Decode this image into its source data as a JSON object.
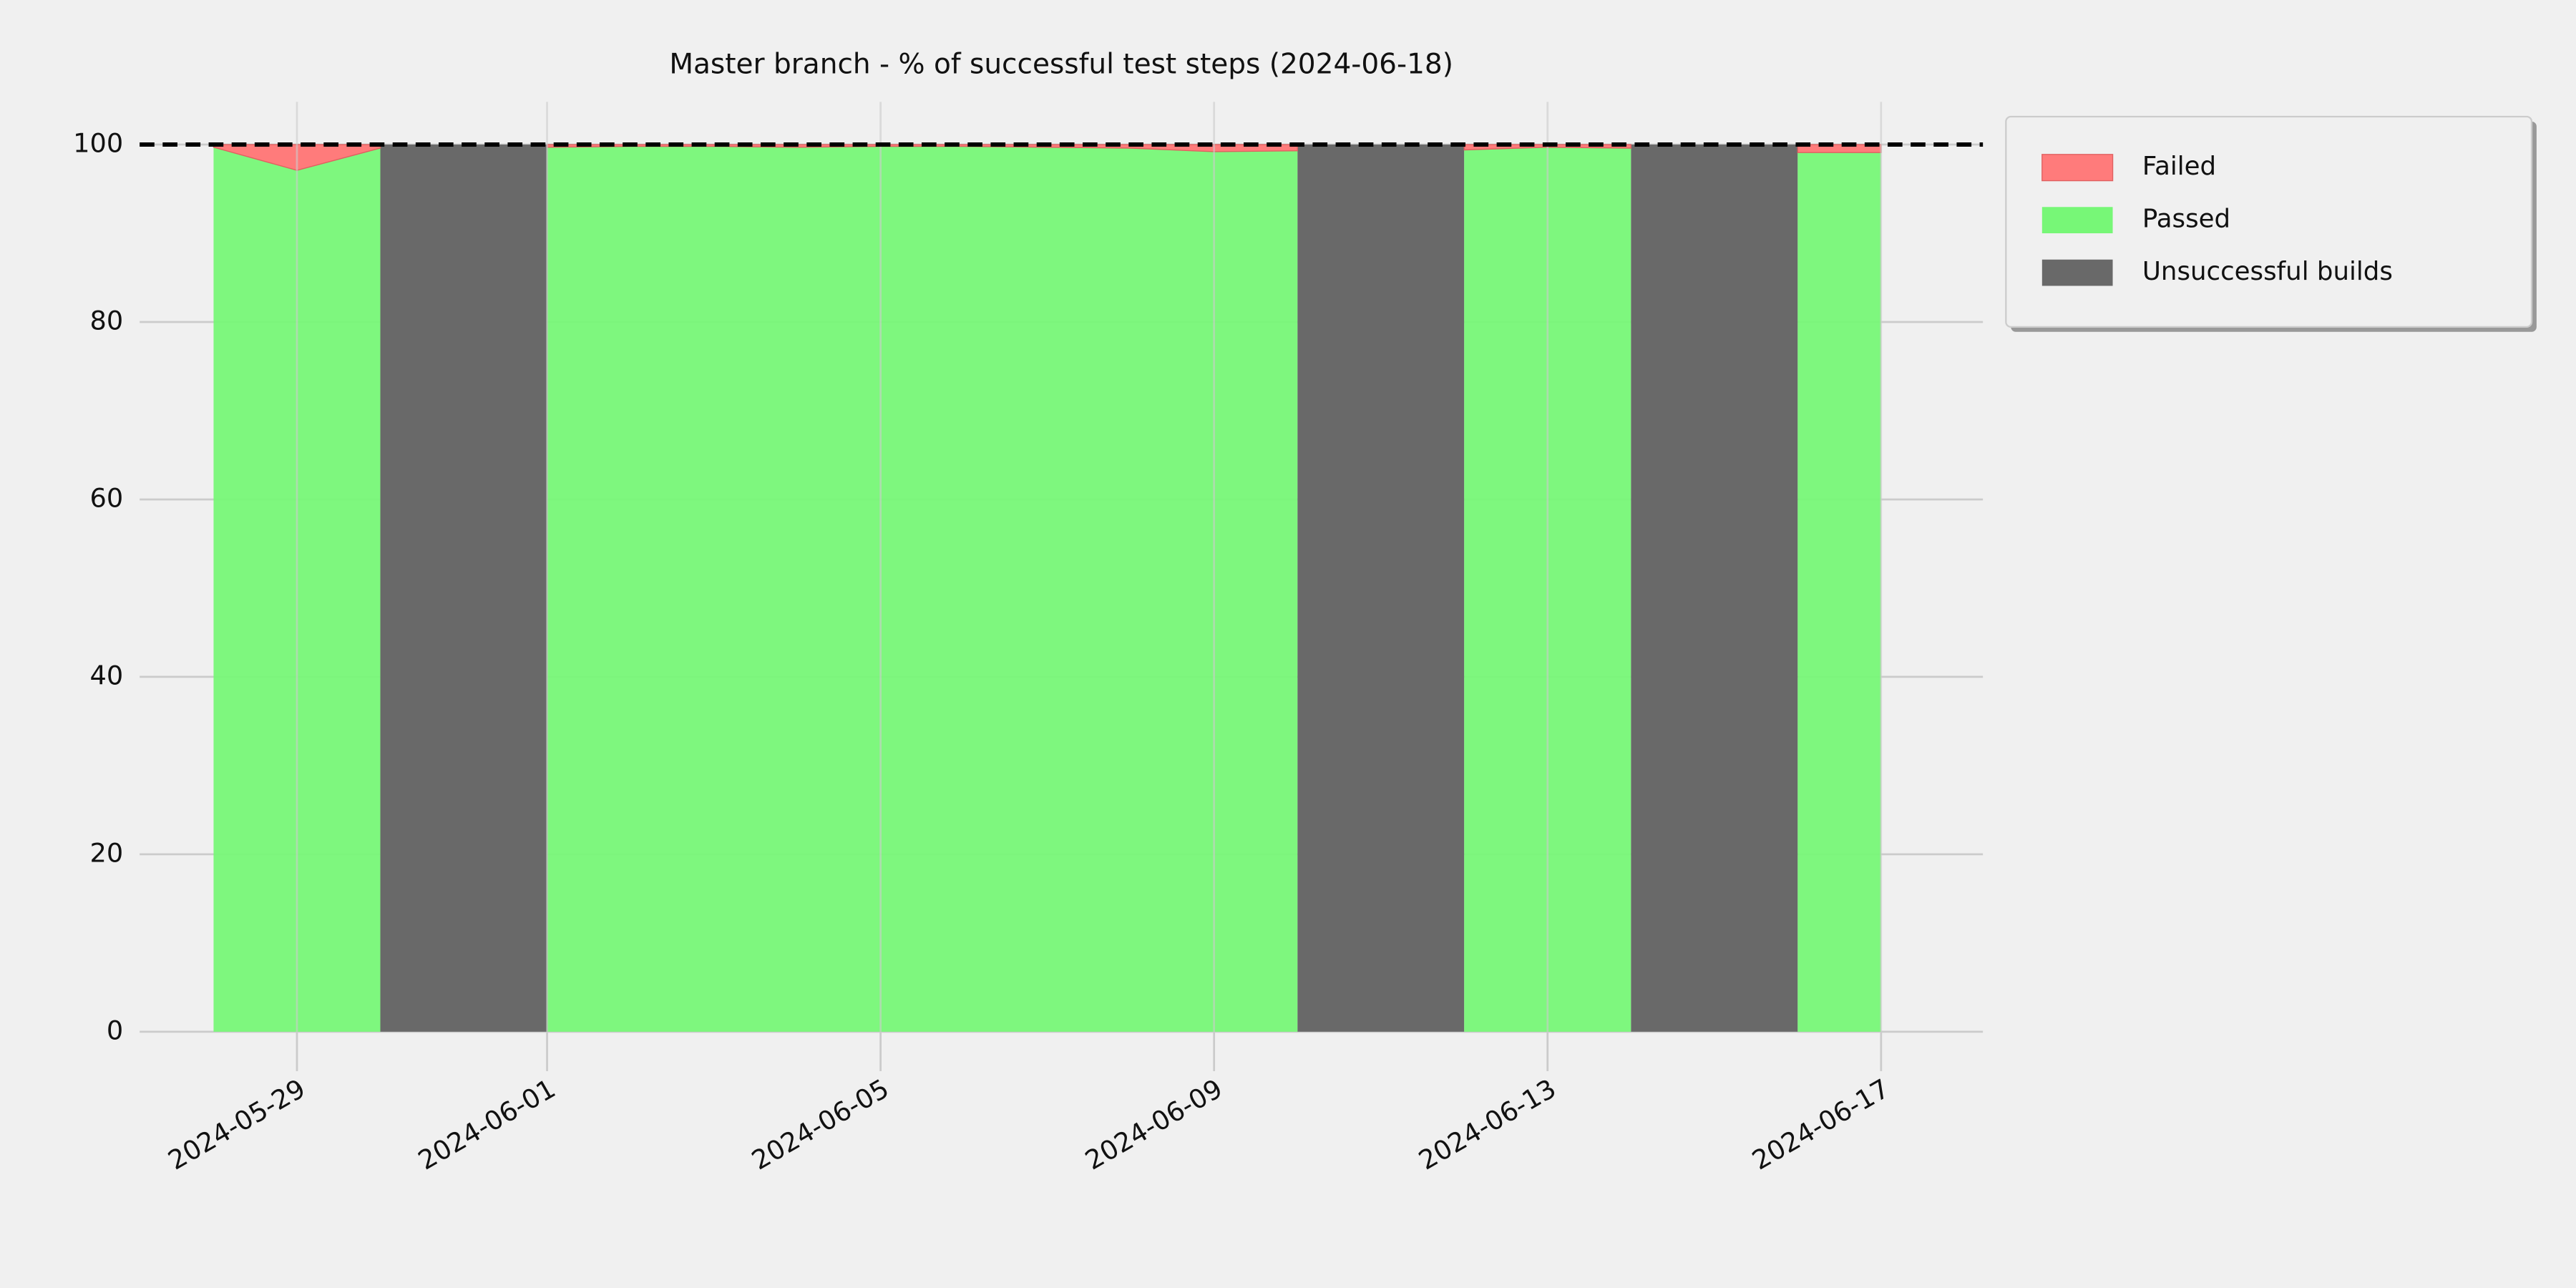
{
  "chart_data": {
    "type": "area",
    "title": "Master branch - % of successful test steps (2024-06-18)",
    "x": [
      "2024-05-28",
      "2024-05-29",
      "2024-05-30",
      "2024-05-31",
      "2024-06-01",
      "2024-06-02",
      "2024-06-03",
      "2024-06-04",
      "2024-06-05",
      "2024-06-06",
      "2024-06-07",
      "2024-06-08",
      "2024-06-09",
      "2024-06-10",
      "2024-06-11",
      "2024-06-12",
      "2024-06-13",
      "2024-06-14",
      "2024-06-15",
      "2024-06-16",
      "2024-06-17"
    ],
    "series": [
      {
        "name": "Failed",
        "color": "#ff7b7b",
        "values": [
          0.3,
          2.9,
          0.4,
          null,
          0.3,
          0.2,
          0.2,
          0.3,
          0.2,
          0.2,
          0.3,
          0.4,
          0.8,
          0.7,
          null,
          0.6,
          0.3,
          0.4,
          null,
          0.9,
          0.9
        ]
      },
      {
        "name": "Passed",
        "color": "#77f777",
        "values": [
          99.7,
          97.1,
          99.6,
          null,
          99.7,
          99.8,
          99.8,
          99.7,
          99.8,
          99.8,
          99.7,
          99.6,
          99.2,
          99.3,
          null,
          99.4,
          99.7,
          99.6,
          null,
          99.1,
          99.1
        ]
      },
      {
        "name": "Unsuccessful builds",
        "color": "#696969",
        "values": [
          null,
          null,
          null,
          100,
          null,
          null,
          null,
          null,
          null,
          null,
          null,
          null,
          null,
          null,
          100,
          null,
          null,
          null,
          100,
          null,
          null
        ]
      }
    ],
    "reference_line": 100,
    "ylim": [
      0,
      100
    ],
    "yticks": [
      0,
      20,
      40,
      60,
      80,
      100
    ],
    "xticks": [
      "2024-05-29",
      "2024-06-01",
      "2024-06-05",
      "2024-06-09",
      "2024-06-13",
      "2024-06-17"
    ],
    "grid": true,
    "legend": "outside upper right"
  }
}
